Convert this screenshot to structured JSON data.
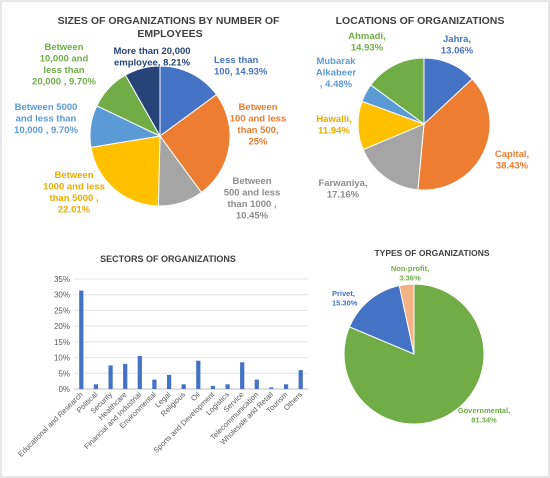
{
  "chart_data": [
    {
      "type": "pie",
      "title": [
        "SIZES OF ORGANIZATIONS BY NUMBER OF",
        "EMPLOYEES"
      ],
      "slices": [
        {
          "label": [
            "Less than",
            "100, 14.93%"
          ],
          "value": 14.93,
          "color": "#4472C4",
          "label_color": "#4472C4"
        },
        {
          "label": [
            "Between",
            "100 and less",
            "than 500,",
            "25%"
          ],
          "value": 25,
          "color": "#ED7D31",
          "label_color": "#ED7D31"
        },
        {
          "label": [
            "Between",
            "500 and less",
            "than 1000 ,",
            "10.45%"
          ],
          "value": 10.45,
          "color": "#A5A5A5",
          "label_color": "#8C8C8C"
        },
        {
          "label": [
            "Between",
            "1000 and less",
            "than 5000 ,",
            "22.01%"
          ],
          "value": 22.01,
          "color": "#FFC000",
          "label_color": "#E6AC00"
        },
        {
          "label": [
            "Between 5000",
            "and less than",
            "10,000 , 9.70%"
          ],
          "value": 9.7,
          "color": "#5B9BD5",
          "label_color": "#5B9BD5"
        },
        {
          "label": [
            "Between",
            "10,000 and",
            "less than",
            "20,000 , 9.70%"
          ],
          "value": 9.7,
          "color": "#70AD47",
          "label_color": "#70AD47"
        },
        {
          "label": [
            "More than 20,000",
            "employee, 8.21%"
          ],
          "value": 8.21,
          "color": "#264478",
          "label_color": "#264478"
        }
      ]
    },
    {
      "type": "pie",
      "title": [
        "LOCATIONS OF ORGANIZATIONS"
      ],
      "slices": [
        {
          "label": [
            "Jahra,",
            "13.06%"
          ],
          "value": 13.06,
          "color": "#4472C4",
          "label_color": "#4472C4"
        },
        {
          "label": [
            "Capital,",
            "38.43%"
          ],
          "value": 38.43,
          "color": "#ED7D31",
          "label_color": "#ED7D31"
        },
        {
          "label": [
            "Farwaniya,",
            "17.16%"
          ],
          "value": 17.16,
          "color": "#A5A5A5",
          "label_color": "#8C8C8C"
        },
        {
          "label": [
            "Hawalli,",
            "11.94%"
          ],
          "value": 11.94,
          "color": "#FFC000",
          "label_color": "#E6AC00"
        },
        {
          "label": [
            "Mubarak",
            "Alkabeer",
            ", 4.48%"
          ],
          "value": 4.48,
          "color": "#5B9BD5",
          "label_color": "#5B9BD5"
        },
        {
          "label": [
            "Ahmadi,",
            "14.93%"
          ],
          "value": 14.93,
          "color": "#70AD47",
          "label_color": "#70AD47"
        }
      ]
    },
    {
      "type": "bar",
      "title": [
        "SECTORS OF ORGANIZATIONS"
      ],
      "categories": [
        "Educational and Research",
        "Political",
        "Security",
        "Healthcare",
        "Financial and Industrial",
        "Environmental",
        "Legal",
        "Religious",
        "Oil",
        "Sports and Development",
        "Logistics",
        "Service",
        "Telecommunication",
        "Wholesale and Retail",
        "Tourism",
        "Others"
      ],
      "values": [
        31.3,
        1.5,
        7.5,
        8.0,
        10.5,
        3.0,
        4.5,
        1.5,
        9.0,
        1.0,
        1.5,
        8.5,
        3.0,
        0.5,
        1.5,
        6.0
      ],
      "ylim": [
        0,
        35
      ],
      "yticks": [
        "0%",
        "5%",
        "10%",
        "15%",
        "20%",
        "25%",
        "30%",
        "35%"
      ],
      "grid": true,
      "color": "#4472C4"
    },
    {
      "type": "pie",
      "title": [
        "TYPES OF ORGANIZATIONS"
      ],
      "slices": [
        {
          "label": [
            "Governmental,",
            "81.34%"
          ],
          "value": 81.34,
          "color": "#70AD47",
          "label_color": "#70AD47"
        },
        {
          "label": [
            "Privet,",
            "15.30%"
          ],
          "value": 15.3,
          "color": "#4472C4",
          "label_color": "#4472C4"
        },
        {
          "label": [
            "Non-profit,",
            "3.36%"
          ],
          "value": 3.36,
          "color": "#F4B183",
          "label_color": "#70AD47"
        }
      ]
    }
  ]
}
